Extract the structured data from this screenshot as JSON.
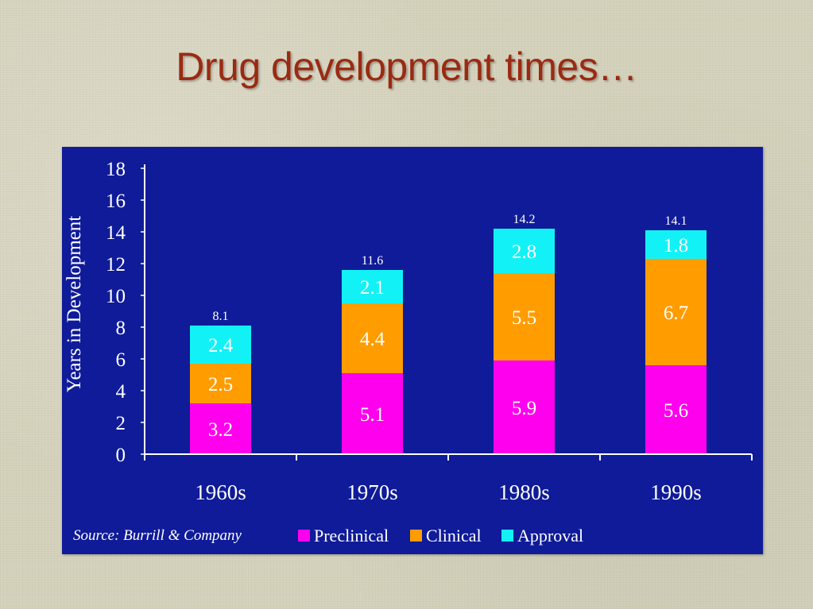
{
  "slide": {
    "title": "Drug development times…"
  },
  "chart_data": {
    "type": "bar",
    "stacked": true,
    "categories": [
      "1960s",
      "1970s",
      "1980s",
      "1990s"
    ],
    "series": [
      {
        "name": "Preclinical",
        "color": "#ff00ee",
        "values": [
          3.2,
          5.1,
          5.9,
          5.6
        ],
        "labels": [
          "3.2",
          "5.1",
          "5.9",
          "5.6"
        ]
      },
      {
        "name": "Clinical",
        "color": "#ff9c00",
        "values": [
          2.5,
          4.4,
          5.5,
          6.7
        ],
        "labels": [
          "2.5",
          "4.4",
          "5.5",
          "6.7"
        ]
      },
      {
        "name": "Approval",
        "color": "#12f2f6",
        "values": [
          2.4,
          2.1,
          2.8,
          1.8
        ],
        "labels": [
          "2.4",
          "2.1",
          "2.8",
          "1.8"
        ]
      }
    ],
    "totals": [
      "8.1",
      "11.6",
      "14.2",
      "14.1"
    ],
    "ylabel": "Years in Development",
    "xlabel": "",
    "ylim": [
      0,
      18
    ],
    "yticks": [
      0,
      2,
      4,
      6,
      8,
      10,
      12,
      14,
      16,
      18
    ],
    "grid": false,
    "legend": "bottom",
    "source": "Source: Burrill & Company",
    "colors": {
      "background": "#0f1b98",
      "text": "#ffffff",
      "title": "#9b2a12"
    }
  }
}
